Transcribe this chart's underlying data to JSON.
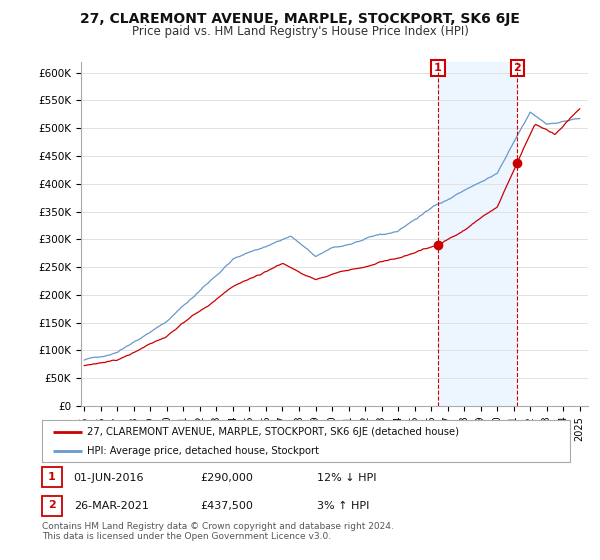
{
  "title": "27, CLAREMONT AVENUE, MARPLE, STOCKPORT, SK6 6JE",
  "subtitle": "Price paid vs. HM Land Registry's House Price Index (HPI)",
  "ylim": [
    0,
    620000
  ],
  "sale1_date": "01-JUN-2016",
  "sale1_price": 290000,
  "sale1_label": "12% ↓ HPI",
  "sale1_x": 2016.42,
  "sale2_date": "26-MAR-2021",
  "sale2_price": 437500,
  "sale2_label": "3% ↑ HPI",
  "sale2_x": 2021.23,
  "legend_house": "27, CLAREMONT AVENUE, MARPLE, STOCKPORT, SK6 6JE (detached house)",
  "legend_hpi": "HPI: Average price, detached house, Stockport",
  "footnote": "Contains HM Land Registry data © Crown copyright and database right 2024.\nThis data is licensed under the Open Government Licence v3.0.",
  "house_color": "#cc0000",
  "hpi_color": "#6699cc",
  "hpi_fill_color": "#ddeeff",
  "vline_color": "#cc0000",
  "background_color": "#ffffff",
  "grid_color": "#dddddd",
  "box_color": "#cc0000"
}
